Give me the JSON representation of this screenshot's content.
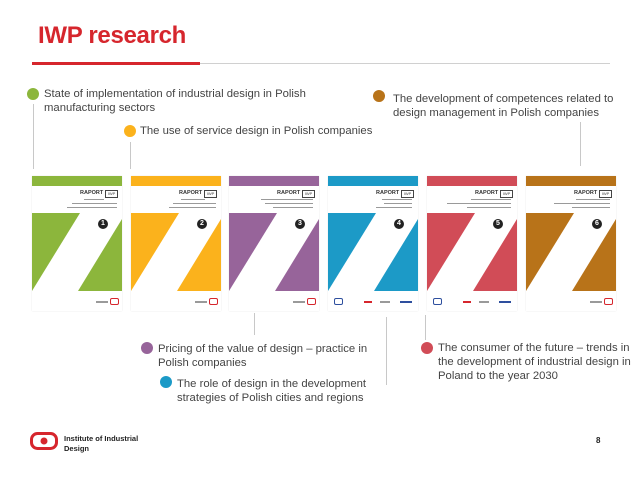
{
  "slide": {
    "title": "IWP research",
    "page_number": "8"
  },
  "colors": {
    "brand_red": "#d6262d",
    "green": "#8cb63c",
    "yellow": "#fbb21c",
    "purple": "#97649a",
    "blue": "#1c9ac7",
    "red": "#d14c57",
    "brown": "#b87319"
  },
  "labels": {
    "green": "State of implementation of industrial design in Polish manufacturing sectors",
    "yellow": "The use of service design in Polish companies",
    "brown": "The development of competences related to design management in Polish companies",
    "purple": "Pricing of the value of design – practice in Polish companies",
    "blue": "The role of design in the development strategies of Polish cities and regions",
    "red": "The consumer of the future – trends in the development of industrial design in Poland to the year 2030"
  },
  "covers": [
    {
      "heading": "RAPORT",
      "number": "1",
      "color": "#8cb63c"
    },
    {
      "heading": "RAPORT",
      "number": "2",
      "color": "#fbb21c"
    },
    {
      "heading": "RAPORT",
      "number": "3",
      "color": "#97649a"
    },
    {
      "heading": "RAPORT",
      "number": "4",
      "color": "#1c9ac7"
    },
    {
      "heading": "RAPORT",
      "number": "5",
      "color": "#d14c57"
    },
    {
      "heading": "RAPORT",
      "number": "6",
      "color": "#b87319"
    }
  ],
  "footer": {
    "line1": "Institute of Industrial",
    "line2": "Design"
  }
}
